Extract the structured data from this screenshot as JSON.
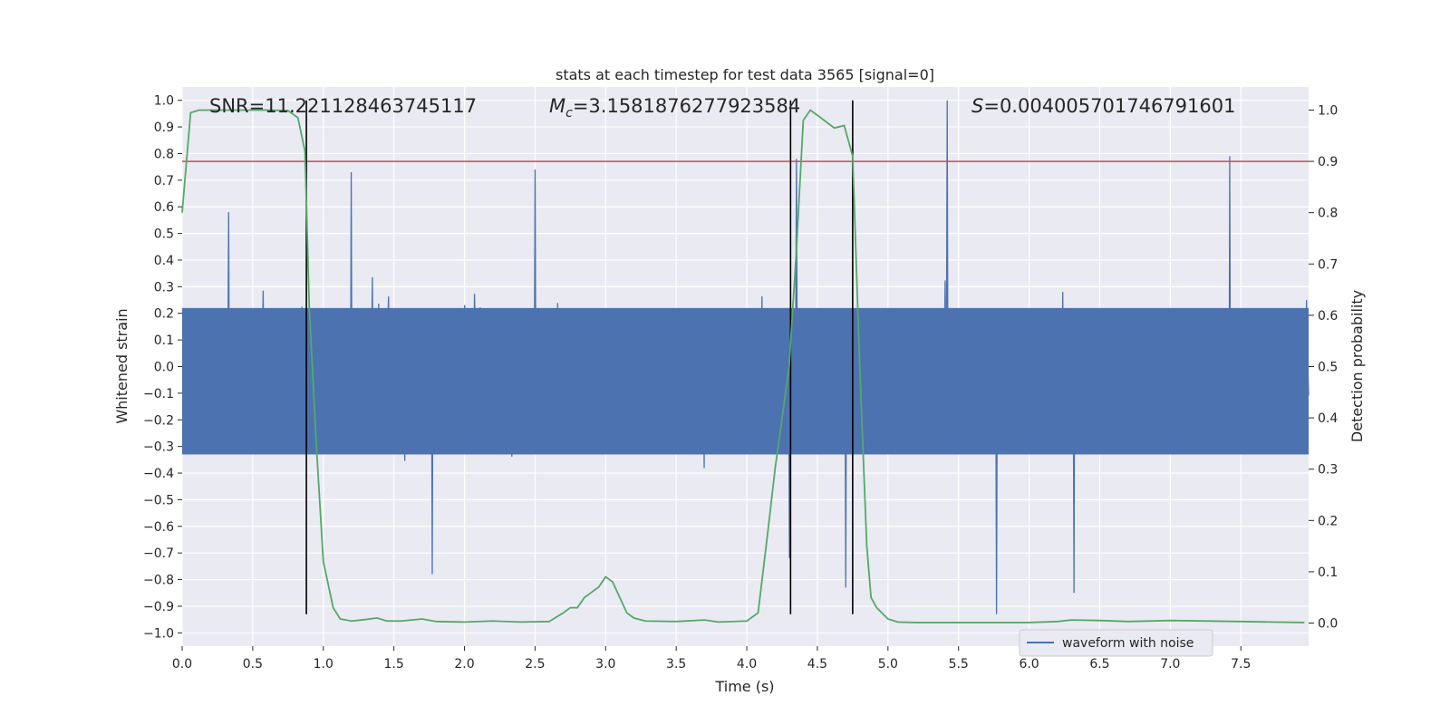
{
  "chart_data": {
    "type": "line",
    "title": "stats at each timestep for test data 3565 [signal=0]",
    "xlabel": "Time (s)",
    "ylabel": "Whitened strain",
    "y2label": "Detection probability",
    "xlim": [
      0,
      7.98
    ],
    "ylim": [
      -1.05,
      1.05
    ],
    "y2lim": [
      -0.045,
      1.045
    ],
    "x_ticks": [
      0.0,
      0.5,
      1.0,
      1.5,
      2.0,
      2.5,
      3.0,
      3.5,
      4.0,
      4.5,
      5.0,
      5.5,
      6.0,
      6.5,
      7.0,
      7.5
    ],
    "x_tick_labels": [
      "0.0",
      "0.5",
      "1.0",
      "1.5",
      "2.0",
      "2.5",
      "3.0",
      "3.5",
      "4.0",
      "4.5",
      "5.0",
      "5.5",
      "6.0",
      "6.5",
      "7.0",
      "7.5"
    ],
    "y_ticks": [
      -1.0,
      -0.9,
      -0.8,
      -0.7,
      -0.6,
      -0.5,
      -0.4,
      -0.3,
      -0.2,
      -0.1,
      0.0,
      0.1,
      0.2,
      0.3,
      0.4,
      0.5,
      0.6,
      0.7,
      0.8,
      0.9,
      1.0
    ],
    "y_tick_labels": [
      "−1.0",
      "−0.9",
      "−0.8",
      "−0.7",
      "−0.6",
      "−0.5",
      "−0.4",
      "−0.3",
      "−0.2",
      "−0.1",
      "0.0",
      "0.1",
      "0.2",
      "0.3",
      "0.4",
      "0.5",
      "0.6",
      "0.7",
      "0.8",
      "0.9",
      "1.0"
    ],
    "y2_ticks": [
      0.0,
      0.1,
      0.2,
      0.3,
      0.4,
      0.5,
      0.6,
      0.7,
      0.8,
      0.9,
      1.0
    ],
    "y2_tick_labels": [
      "0.0",
      "0.1",
      "0.2",
      "0.3",
      "0.4",
      "0.5",
      "0.6",
      "0.7",
      "0.8",
      "0.9",
      "1.0"
    ],
    "grid": true,
    "legend": {
      "placement": "bottom-right",
      "entries": [
        "waveform with noise"
      ]
    },
    "annotations": {
      "snr": "SNR=11.221128463745117",
      "mc_symbol": "M",
      "mc_sub": "c",
      "mc_value": "=3.1581876277923584",
      "s_symbol": "S",
      "s_value": "=0.004005701746791601"
    },
    "threshold_y2": 0.9,
    "vertical_lines_x": [
      0.88,
      4.31,
      4.75
    ],
    "series": [
      {
        "name": "waveform with noise",
        "axis": "left",
        "color": "#4c72b0",
        "noise_envelope": {
          "core_amplitude": 0.3,
          "typical_peak": 0.55,
          "max_peak": 1.0,
          "min_peak": -0.93
        },
        "notable_peaks": [
          {
            "x": 0.33,
            "y": 0.58
          },
          {
            "x": 1.2,
            "y": 0.73
          },
          {
            "x": 2.5,
            "y": 0.74
          },
          {
            "x": 4.3,
            "y": -0.72
          },
          {
            "x": 4.35,
            "y": 0.78
          },
          {
            "x": 4.7,
            "y": -0.83
          },
          {
            "x": 5.42,
            "y": 1.0
          },
          {
            "x": 5.77,
            "y": -0.93
          },
          {
            "x": 6.32,
            "y": -0.85
          },
          {
            "x": 7.42,
            "y": 0.79
          },
          {
            "x": 1.77,
            "y": -0.78
          }
        ]
      },
      {
        "name": "detection probability",
        "axis": "right",
        "color": "#55a868",
        "x": [
          0.0,
          0.06,
          0.12,
          0.2,
          0.4,
          0.6,
          0.75,
          0.82,
          0.87,
          0.9,
          0.95,
          1.0,
          1.07,
          1.12,
          1.2,
          1.3,
          1.38,
          1.45,
          1.55,
          1.7,
          1.8,
          2.0,
          2.2,
          2.4,
          2.6,
          2.7,
          2.75,
          2.8,
          2.85,
          2.9,
          2.95,
          3.0,
          3.05,
          3.1,
          3.15,
          3.2,
          3.28,
          3.5,
          3.7,
          3.8,
          4.0,
          4.08,
          4.15,
          4.2,
          4.3,
          4.35,
          4.4,
          4.45,
          4.5,
          4.62,
          4.69,
          4.75,
          4.8,
          4.85,
          4.88,
          4.92,
          5.0,
          5.07,
          5.2,
          5.5,
          6.0,
          6.2,
          6.3,
          6.5,
          6.7,
          7.0,
          7.5,
          7.95
        ],
        "y": [
          0.8,
          0.995,
          1.0,
          1.0,
          1.0,
          1.0,
          0.999,
          0.985,
          0.92,
          0.62,
          0.35,
          0.12,
          0.03,
          0.008,
          0.004,
          0.007,
          0.01,
          0.004,
          0.004,
          0.008,
          0.003,
          0.002,
          0.004,
          0.002,
          0.003,
          0.02,
          0.03,
          0.03,
          0.05,
          0.06,
          0.07,
          0.09,
          0.08,
          0.05,
          0.02,
          0.01,
          0.004,
          0.003,
          0.006,
          0.002,
          0.004,
          0.02,
          0.18,
          0.3,
          0.5,
          0.72,
          0.98,
          1.0,
          0.99,
          0.965,
          0.97,
          0.91,
          0.5,
          0.15,
          0.05,
          0.03,
          0.008,
          0.002,
          0.001,
          0.001,
          0.001,
          0.003,
          0.006,
          0.005,
          0.003,
          0.005,
          0.003,
          0.001
        ]
      }
    ],
    "colors": {
      "noise": "#4c72b0",
      "probability": "#55a868",
      "threshold": "#c44e52",
      "vlines": "#000000",
      "axes_bg": "#eaeaf2",
      "grid": "#ffffff"
    }
  }
}
